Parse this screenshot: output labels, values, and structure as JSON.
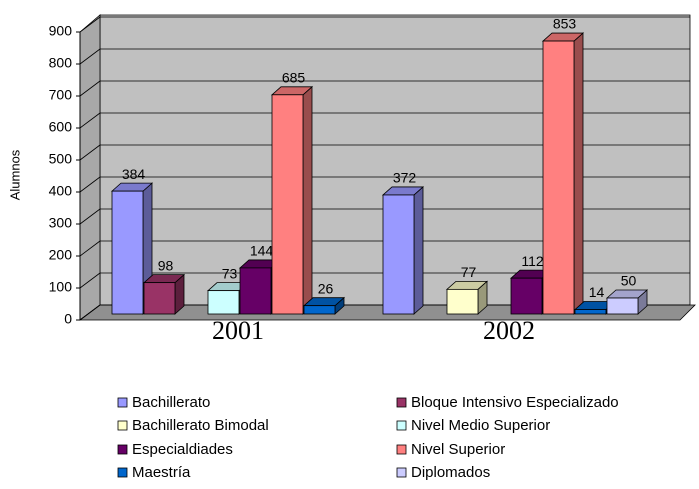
{
  "chart_data": {
    "type": "bar3d",
    "y_label": "Alumnos",
    "categories": [
      "2001",
      "2002"
    ],
    "ylim": [
      0,
      900
    ],
    "yticks": [
      0,
      100,
      200,
      300,
      400,
      500,
      600,
      700,
      800,
      900
    ],
    "grid": true,
    "legend": "bottom",
    "series": [
      {
        "name": "Bachillerato",
        "color": "#9999FF",
        "values": [
          384,
          372
        ]
      },
      {
        "name": "Bloque Intensivo Especializado",
        "color": "#993366",
        "values": [
          98,
          null
        ]
      },
      {
        "name": "Bachillerato Bimodal",
        "color": "#FFFFCC",
        "values": [
          null,
          77
        ]
      },
      {
        "name": "Nivel Medio Superior",
        "color": "#CCFFFF",
        "values": [
          73,
          null
        ]
      },
      {
        "name": "Especialdiades",
        "color": "#660066",
        "values": [
          144,
          112
        ]
      },
      {
        "name": "Nivel Superior",
        "color": "#FF8080",
        "values": [
          685,
          853
        ]
      },
      {
        "name": "Maestría",
        "color": "#0066CC",
        "values": [
          26,
          14
        ]
      },
      {
        "name": "Diplomados",
        "color": "#CCCCFF",
        "values": [
          null,
          50
        ]
      }
    ]
  }
}
